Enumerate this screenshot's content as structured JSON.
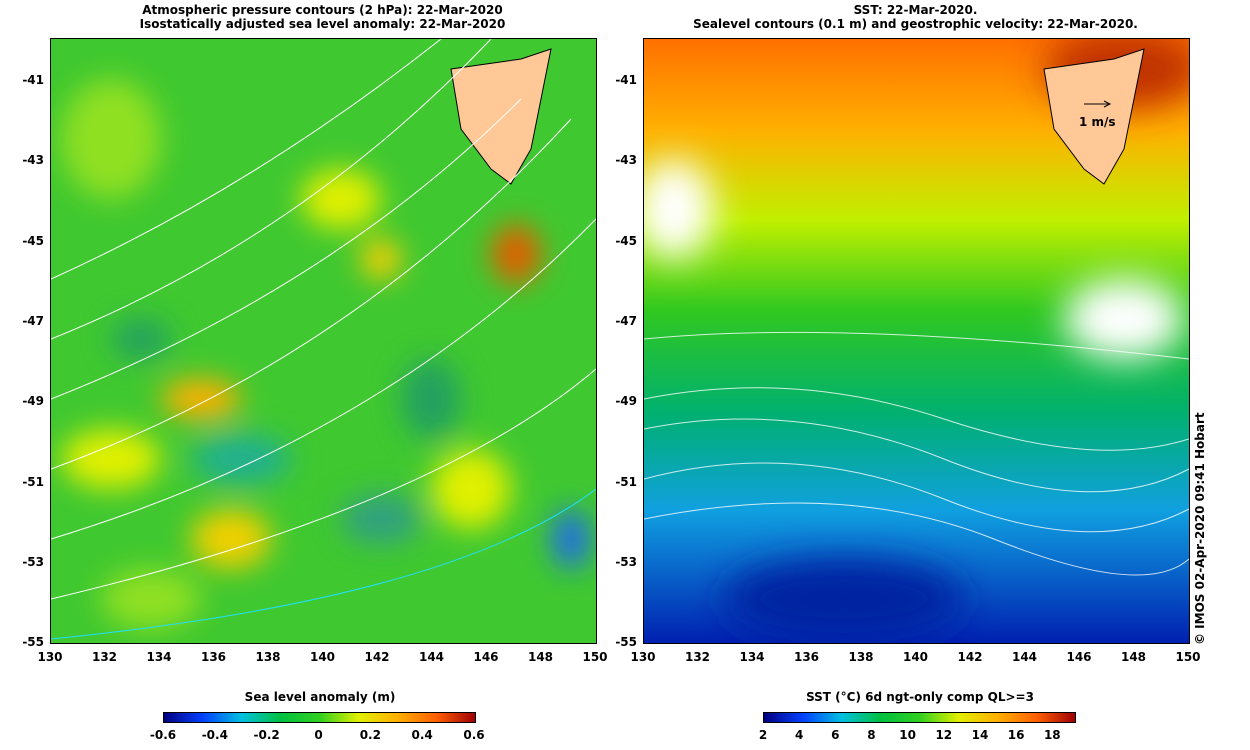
{
  "left": {
    "title1": "Atmospheric pressure contours (2 hPa): 22-Mar-2020",
    "title2": "Isostatically adjusted sea level anomaly: 22-Mar-2020",
    "colorbar_label": "Sea level anomaly (m)",
    "colorbar_ticks": [
      "-0.6",
      "-0.4",
      "-0.2",
      "0",
      "0.2",
      "0.4",
      "0.6"
    ]
  },
  "right": {
    "title1": "SST: 22-Mar-2020.",
    "title2": "Sealevel contours (0.1 m) and geostrophic velocity: 22-Mar-2020.",
    "colorbar_label": "SST (°C) 6d ngt-only comp QL>=3",
    "colorbar_ticks": [
      "2",
      "4",
      "6",
      "8",
      "10",
      "12",
      "14",
      "16",
      "18"
    ],
    "velocity_scale": "1 m/s"
  },
  "axes": {
    "lon_ticks": [
      "130",
      "132",
      "134",
      "136",
      "138",
      "140",
      "142",
      "144",
      "146",
      "148",
      "150"
    ],
    "lat_ticks": [
      "-41",
      "-43",
      "-45",
      "-47",
      "-49",
      "-51",
      "-53",
      "-55"
    ]
  },
  "credit": "© IMOS 02-Apr-2020 09:41 Hobart",
  "colors": {
    "land": "#ffc896",
    "jet": [
      "#00007f",
      "#0040ff",
      "#00c0e0",
      "#00c040",
      "#30d020",
      "#e0f000",
      "#ffb000",
      "#ff6000",
      "#a00000"
    ]
  }
}
